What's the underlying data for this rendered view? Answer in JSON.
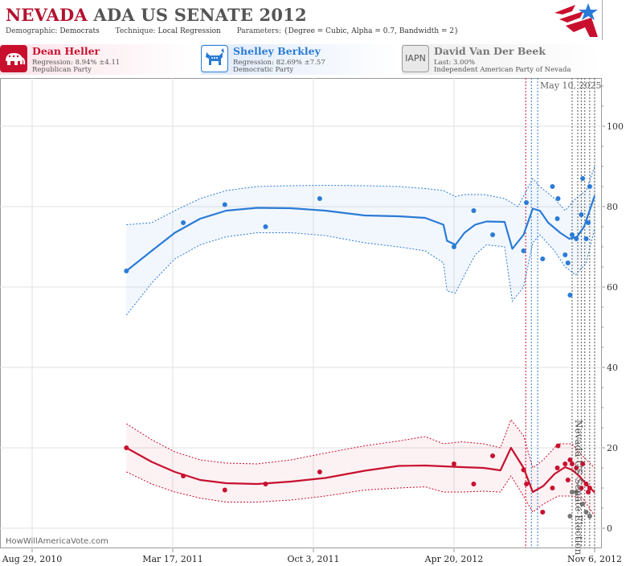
{
  "header": {
    "title_state": "NEVADA",
    "title_rest": "ADA US SENATE 2012",
    "demographic_label": "Demographic:",
    "demographic_value": "Democrats",
    "technique_label": "Technique:",
    "technique_value": "Local Regression",
    "parameters_label": "Parameters:",
    "parameters_value": "{Degree = Cubic, Alpha = 0.7, Bandwidth = 2}"
  },
  "candidates": [
    {
      "name": "Dean Heller",
      "line1": "Regression: 8.94% ±4.11",
      "line2": "Republican Party",
      "color": "#c8102e",
      "icon": "elephant-icon"
    },
    {
      "name": "Shelley Berkley",
      "line1": "Regression: 82.69% ±7.57",
      "line2": "Democratic Party",
      "color": "#2a7bd6",
      "icon": "donkey-icon"
    },
    {
      "name": "David Van Der Beek",
      "line1": "Last: 3.00%",
      "line2": "Independent American Party  of Nevada",
      "color": "#777777",
      "badge": "IAPN"
    }
  ],
  "date_label": "May 10, 2025",
  "election_label": "Nevada US Senate Election",
  "watermark": "HowWillAmericaVote.com",
  "chart_data": {
    "type": "scatter",
    "x_ticks": [
      {
        "label": "Aug 29, 2010",
        "date": "2010-08-29"
      },
      {
        "label": "Mar 17, 2011",
        "date": "2011-03-17"
      },
      {
        "label": "Oct 3, 2011",
        "date": "2011-10-03"
      },
      {
        "label": "Apr 20, 2012",
        "date": "2012-04-20"
      },
      {
        "label": "Nov 6, 2012",
        "date": "2012-11-06"
      }
    ],
    "y_ticks": [
      0,
      20,
      40,
      60,
      80,
      100
    ],
    "ylim": [
      -5,
      112
    ],
    "xlim": [
      "2010-08-29",
      "2012-11-14"
    ],
    "grid": true,
    "vertical_markers": [
      {
        "date": "2012-07-31",
        "color": "#c8102e"
      },
      {
        "date": "2012-08-08",
        "color": "#2a7bd6"
      },
      {
        "date": "2012-08-17",
        "color": "#2a7bd6"
      },
      {
        "date": "2012-10-05",
        "color": "#555555"
      },
      {
        "date": "2012-10-13",
        "color": "#555555"
      },
      {
        "date": "2012-10-18",
        "color": "#555555"
      },
      {
        "date": "2012-10-23",
        "color": "#555555"
      },
      {
        "date": "2012-10-30",
        "color": "#555555"
      },
      {
        "date": "2012-11-06",
        "color": "#555555"
      }
    ],
    "series": [
      {
        "name": "Shelley Berkley",
        "color": "#2a7bd6",
        "points": [
          [
            "2011-01-10",
            64
          ],
          [
            "2011-04-01",
            76
          ],
          [
            "2011-05-30",
            80.5
          ],
          [
            "2011-07-27",
            75
          ],
          [
            "2011-10-12",
            82
          ],
          [
            "2012-04-20",
            70
          ],
          [
            "2012-05-18",
            79
          ],
          [
            "2012-06-14",
            73
          ],
          [
            "2012-07-28",
            69
          ],
          [
            "2012-08-01",
            81
          ],
          [
            "2012-08-24",
            67
          ],
          [
            "2012-09-07",
            85
          ],
          [
            "2012-09-14",
            77
          ],
          [
            "2012-09-15",
            82
          ],
          [
            "2012-09-25",
            68
          ],
          [
            "2012-09-29",
            66
          ],
          [
            "2012-10-02",
            58
          ],
          [
            "2012-10-05",
            73
          ],
          [
            "2012-10-11",
            72
          ],
          [
            "2012-10-18",
            78
          ],
          [
            "2012-10-20",
            87
          ],
          [
            "2012-10-25",
            72
          ],
          [
            "2012-10-28",
            76
          ],
          [
            "2012-10-30",
            85
          ]
        ],
        "trend": [
          [
            "2011-01-10",
            64
          ],
          [
            "2011-02-15",
            69
          ],
          [
            "2011-03-20",
            73.5
          ],
          [
            "2011-04-25",
            77
          ],
          [
            "2011-06-01",
            79
          ],
          [
            "2011-07-15",
            79.7
          ],
          [
            "2011-09-01",
            79.6
          ],
          [
            "2011-10-20",
            79
          ],
          [
            "2011-12-15",
            77.8
          ],
          [
            "2012-02-01",
            77.6
          ],
          [
            "2012-03-10",
            77.2
          ],
          [
            "2012-04-05",
            75.5
          ],
          [
            "2012-04-10",
            71.5
          ],
          [
            "2012-04-22",
            70.5
          ],
          [
            "2012-05-05",
            73.5
          ],
          [
            "2012-05-20",
            75.5
          ],
          [
            "2012-06-05",
            76.3
          ],
          [
            "2012-07-01",
            76.2
          ],
          [
            "2012-07-12",
            69.5
          ],
          [
            "2012-07-28",
            73
          ],
          [
            "2012-08-10",
            79.5
          ],
          [
            "2012-08-20",
            79
          ],
          [
            "2012-09-01",
            76
          ],
          [
            "2012-09-18",
            73.5
          ],
          [
            "2012-10-01",
            72
          ],
          [
            "2012-10-12",
            72.5
          ],
          [
            "2012-10-22",
            75
          ],
          [
            "2012-11-06",
            82.7
          ]
        ],
        "upper": [
          [
            "2011-01-10",
            75.5
          ],
          [
            "2011-02-15",
            76
          ],
          [
            "2011-03-20",
            79
          ],
          [
            "2011-04-25",
            82
          ],
          [
            "2011-06-01",
            84
          ],
          [
            "2011-07-15",
            85
          ],
          [
            "2011-09-01",
            85.2
          ],
          [
            "2011-10-20",
            85.3
          ],
          [
            "2011-12-15",
            85.2
          ],
          [
            "2012-02-01",
            85
          ],
          [
            "2012-03-10",
            84.5
          ],
          [
            "2012-04-05",
            84
          ],
          [
            "2012-04-22",
            82.5
          ],
          [
            "2012-05-05",
            83
          ],
          [
            "2012-06-01",
            83
          ],
          [
            "2012-07-01",
            82
          ],
          [
            "2012-07-20",
            80
          ],
          [
            "2012-08-10",
            87
          ],
          [
            "2012-08-20",
            85
          ],
          [
            "2012-09-10",
            82
          ],
          [
            "2012-09-25",
            79
          ],
          [
            "2012-10-10",
            82
          ],
          [
            "2012-10-25",
            84
          ],
          [
            "2012-11-06",
            90
          ]
        ],
        "lower": [
          [
            "2011-01-10",
            53
          ],
          [
            "2011-02-15",
            61
          ],
          [
            "2011-03-20",
            67
          ],
          [
            "2011-04-25",
            70.5
          ],
          [
            "2011-06-01",
            72.5
          ],
          [
            "2011-07-15",
            73.5
          ],
          [
            "2011-09-01",
            73.5
          ],
          [
            "2011-10-20",
            72.8
          ],
          [
            "2011-12-15",
            71
          ],
          [
            "2012-02-01",
            70
          ],
          [
            "2012-03-10",
            69
          ],
          [
            "2012-04-05",
            66
          ],
          [
            "2012-04-10",
            59
          ],
          [
            "2012-04-22",
            58.5
          ],
          [
            "2012-05-05",
            63
          ],
          [
            "2012-05-20",
            68
          ],
          [
            "2012-06-05",
            70.5
          ],
          [
            "2012-07-01",
            70
          ],
          [
            "2012-07-12",
            56.5
          ],
          [
            "2012-07-28",
            60
          ],
          [
            "2012-08-10",
            71
          ],
          [
            "2012-08-20",
            73
          ],
          [
            "2012-09-10",
            69
          ],
          [
            "2012-09-25",
            65
          ],
          [
            "2012-10-10",
            63
          ],
          [
            "2012-10-25",
            66
          ],
          [
            "2012-11-06",
            74.5
          ]
        ]
      },
      {
        "name": "Dean Heller",
        "color": "#c8102e",
        "points": [
          [
            "2011-01-10",
            20
          ],
          [
            "2011-04-01",
            13
          ],
          [
            "2011-05-30",
            9.5
          ],
          [
            "2011-07-27",
            11
          ],
          [
            "2011-10-12",
            14
          ],
          [
            "2012-04-20",
            16
          ],
          [
            "2012-05-18",
            11
          ],
          [
            "2012-06-14",
            18
          ],
          [
            "2012-07-28",
            14.5
          ],
          [
            "2012-08-01",
            11
          ],
          [
            "2012-08-24",
            4
          ],
          [
            "2012-09-07",
            10
          ],
          [
            "2012-09-14",
            15
          ],
          [
            "2012-09-15",
            20.5
          ],
          [
            "2012-09-25",
            16
          ],
          [
            "2012-09-29",
            12
          ],
          [
            "2012-10-02",
            17
          ],
          [
            "2012-10-05",
            16
          ],
          [
            "2012-10-11",
            15
          ],
          [
            "2012-10-18",
            10
          ],
          [
            "2012-10-20",
            16
          ],
          [
            "2012-10-25",
            11
          ],
          [
            "2012-10-28",
            9
          ],
          [
            "2012-10-30",
            10
          ]
        ],
        "trend": [
          [
            "2011-01-10",
            20
          ],
          [
            "2011-02-15",
            16.5
          ],
          [
            "2011-03-20",
            14
          ],
          [
            "2011-04-25",
            12
          ],
          [
            "2011-06-01",
            11.2
          ],
          [
            "2011-07-15",
            11
          ],
          [
            "2011-09-01",
            11.6
          ],
          [
            "2011-10-20",
            12.5
          ],
          [
            "2011-12-15",
            14.3
          ],
          [
            "2012-02-01",
            15.5
          ],
          [
            "2012-03-10",
            15.6
          ],
          [
            "2012-05-01",
            15.2
          ],
          [
            "2012-06-01",
            15
          ],
          [
            "2012-06-25",
            14.4
          ],
          [
            "2012-07-10",
            20
          ],
          [
            "2012-07-28",
            15
          ],
          [
            "2012-08-10",
            9
          ],
          [
            "2012-08-25",
            10.5
          ],
          [
            "2012-09-10",
            13.5
          ],
          [
            "2012-09-25",
            15.2
          ],
          [
            "2012-10-05",
            14.5
          ],
          [
            "2012-10-15",
            13
          ],
          [
            "2012-10-25",
            11
          ],
          [
            "2012-11-06",
            8.9
          ]
        ],
        "upper": [
          [
            "2011-01-10",
            26
          ],
          [
            "2011-02-15",
            22
          ],
          [
            "2011-03-20",
            19
          ],
          [
            "2011-04-25",
            17
          ],
          [
            "2011-06-01",
            16.2
          ],
          [
            "2011-07-15",
            16
          ],
          [
            "2011-09-01",
            17
          ],
          [
            "2011-10-20",
            18.7
          ],
          [
            "2011-12-15",
            20.5
          ],
          [
            "2012-02-01",
            21.7
          ],
          [
            "2012-03-10",
            22.8
          ],
          [
            "2012-04-05",
            21
          ],
          [
            "2012-05-01",
            21.5
          ],
          [
            "2012-06-01",
            21
          ],
          [
            "2012-06-25",
            20
          ],
          [
            "2012-07-10",
            27
          ],
          [
            "2012-07-28",
            23
          ],
          [
            "2012-08-10",
            15
          ],
          [
            "2012-08-25",
            17
          ],
          [
            "2012-09-15",
            21
          ],
          [
            "2012-10-05",
            21
          ],
          [
            "2012-10-20",
            18
          ],
          [
            "2012-11-06",
            15
          ]
        ],
        "lower": [
          [
            "2011-01-10",
            14
          ],
          [
            "2011-02-15",
            11
          ],
          [
            "2011-03-20",
            9
          ],
          [
            "2011-04-25",
            7.5
          ],
          [
            "2011-06-01",
            6.5
          ],
          [
            "2011-07-15",
            6.5
          ],
          [
            "2011-09-01",
            7
          ],
          [
            "2011-10-20",
            8
          ],
          [
            "2011-12-15",
            9.5
          ],
          [
            "2012-02-01",
            10
          ],
          [
            "2012-03-10",
            10.3
          ],
          [
            "2012-04-05",
            9
          ],
          [
            "2012-05-01",
            9
          ],
          [
            "2012-06-01",
            9.2
          ],
          [
            "2012-06-25",
            9
          ],
          [
            "2012-07-10",
            13
          ],
          [
            "2012-07-28",
            8
          ],
          [
            "2012-08-10",
            4
          ],
          [
            "2012-08-25",
            6
          ],
          [
            "2012-09-15",
            8
          ],
          [
            "2012-10-05",
            8
          ],
          [
            "2012-10-20",
            7.5
          ],
          [
            "2012-11-06",
            3
          ]
        ]
      },
      {
        "name": "David Van Der Beek",
        "color": "#777777",
        "points": [
          [
            "2012-10-02",
            3
          ],
          [
            "2012-10-05",
            9
          ],
          [
            "2012-10-11",
            9
          ],
          [
            "2012-10-20",
            6
          ],
          [
            "2012-10-25",
            4
          ],
          [
            "2012-10-30",
            3
          ]
        ]
      }
    ]
  }
}
